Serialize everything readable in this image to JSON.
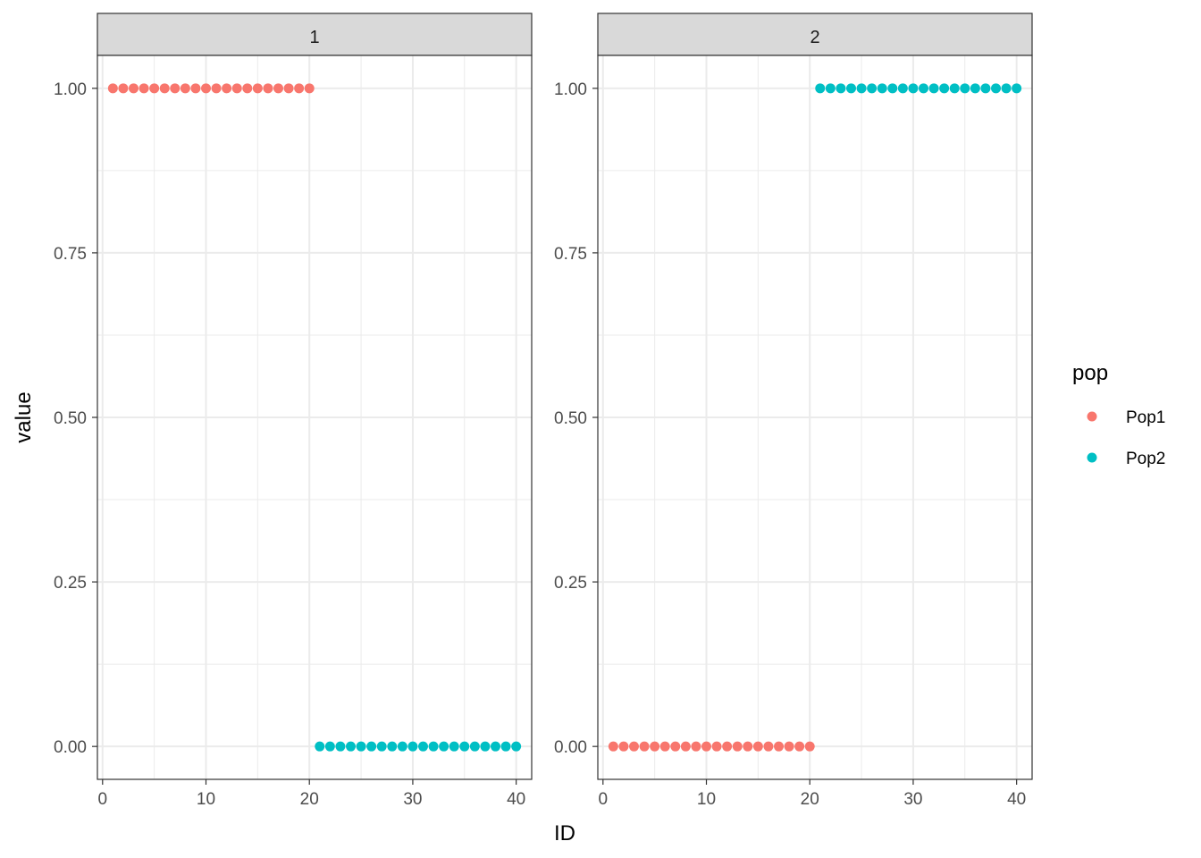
{
  "chart_data": {
    "type": "scatter",
    "facet_variable_values": [
      "1",
      "2"
    ],
    "xlabel": "ID",
    "ylabel": "value",
    "xlim": [
      -0.5,
      41.5
    ],
    "ylim": [
      -0.05,
      1.05
    ],
    "x_ticks": [
      0,
      10,
      20,
      30,
      40
    ],
    "y_ticks": [
      0.0,
      0.25,
      0.5,
      0.75,
      1.0
    ],
    "y_tick_labels": [
      "0.00",
      "0.25",
      "0.50",
      "0.75",
      "1.00"
    ],
    "x_tick_labels": [
      "0",
      "10",
      "20",
      "30",
      "40"
    ],
    "grid": true,
    "legend": {
      "title": "pop",
      "placement": "right",
      "entries": [
        {
          "name": "Pop1",
          "color": "#F8766D"
        },
        {
          "name": "Pop2",
          "color": "#00BFC4"
        }
      ]
    },
    "panels": [
      {
        "facet": "1",
        "series": [
          {
            "name": "Pop1",
            "x_start": 1,
            "x_end": 20,
            "y": 1.0
          },
          {
            "name": "Pop2",
            "x_start": 21,
            "x_end": 40,
            "y": 0.0
          }
        ]
      },
      {
        "facet": "2",
        "series": [
          {
            "name": "Pop1",
            "x_start": 1,
            "x_end": 20,
            "y": 0.0
          },
          {
            "name": "Pop2",
            "x_start": 21,
            "x_end": 40,
            "y": 1.0
          }
        ]
      }
    ]
  }
}
